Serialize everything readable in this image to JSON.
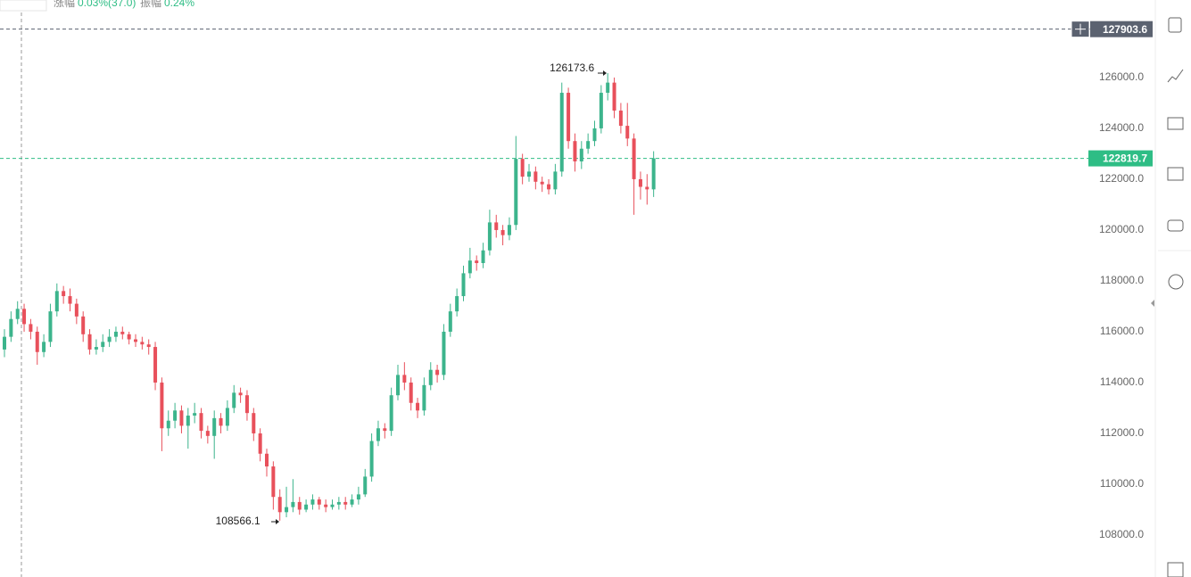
{
  "header": {
    "change_label": "涨幅",
    "change": "0.03%(37.0)",
    "amplitude_label": "振幅",
    "amplitude": "0.24%"
  },
  "chart_data": {
    "type": "candlestick",
    "up_color": "#3cb48c",
    "down_color": "#e8505b",
    "ylim": [
      106350,
      129050
    ],
    "yticks": [
      {
        "value": 108000,
        "label": "108000.0"
      },
      {
        "value": 110000,
        "label": "110000.0"
      },
      {
        "value": 112000,
        "label": "112000.0"
      },
      {
        "value": 114000,
        "label": "114000.0"
      },
      {
        "value": 116000,
        "label": "116000.0"
      },
      {
        "value": 118000,
        "label": "118000.0"
      },
      {
        "value": 120000,
        "label": "120000.0"
      },
      {
        "value": 122000,
        "label": "122000.0"
      },
      {
        "value": 124000,
        "label": "124000.0"
      },
      {
        "value": 126000,
        "label": "126000.0"
      }
    ],
    "price_lines": [
      {
        "value": 127903.6,
        "color": "#5b6270"
      },
      {
        "value": 122819.7,
        "color": "#2ebd85"
      }
    ],
    "open": [
      115300,
      115800,
      116500,
      116900,
      116300,
      116000,
      115200,
      115600,
      116800,
      117600,
      117400,
      117100,
      116600,
      115900,
      115300,
      115400,
      115600,
      115800,
      116000,
      115900,
      115700,
      115600,
      115500,
      115400,
      114000,
      112200,
      112500,
      112900,
      112300,
      112700,
      112800,
      112100,
      111900,
      112600,
      112300,
      113000,
      113600,
      113500,
      112800,
      112000,
      111200,
      110700,
      109500,
      108900,
      109100,
      109300,
      109000,
      109200,
      109400,
      109200,
      109100,
      109200,
      109300,
      109200,
      109400,
      109600,
      110300,
      111700,
      112200,
      112100,
      113500,
      114300,
      114000,
      113200,
      112900,
      113900,
      114500,
      114300,
      116000,
      116800,
      117400,
      118300,
      118800,
      118700,
      119200,
      120300,
      120000,
      119800,
      120200,
      122800,
      122100,
      122300,
      121900,
      121800,
      121600,
      122300,
      125400,
      123500,
      122700,
      123200,
      123500,
      124000,
      125400,
      125800,
      124700,
      124100,
      123600,
      122000,
      121700,
      121600
    ],
    "high": [
      116100,
      116800,
      117200,
      117100,
      116500,
      116200,
      115900,
      117100,
      117900,
      117800,
      117700,
      117300,
      116800,
      116100,
      115700,
      115900,
      116100,
      116200,
      116200,
      116000,
      115900,
      115800,
      115700,
      115600,
      114200,
      112900,
      113200,
      113100,
      113000,
      113200,
      113000,
      112300,
      112900,
      112800,
      113300,
      113900,
      113800,
      113700,
      113000,
      112200,
      111400,
      110900,
      109800,
      109900,
      110200,
      109500,
      109400,
      109600,
      109500,
      109400,
      109400,
      109500,
      109500,
      109600,
      109900,
      110600,
      112000,
      112500,
      112400,
      113800,
      114700,
      114800,
      114200,
      113400,
      114200,
      114800,
      114700,
      116300,
      117100,
      117700,
      118600,
      119300,
      119000,
      119500,
      120800,
      120600,
      120200,
      120500,
      123700,
      123000,
      122600,
      122500,
      122100,
      122000,
      122600,
      125800,
      125600,
      123800,
      123500,
      123800,
      124300,
      125700,
      126173.6,
      126000,
      125000,
      125000,
      123800,
      122300,
      122200,
      123100
    ],
    "low": [
      115000,
      115600,
      116300,
      116000,
      115700,
      114700,
      115000,
      115400,
      116600,
      117100,
      116800,
      116300,
      115600,
      115100,
      115100,
      115200,
      115400,
      115600,
      115700,
      115500,
      115400,
      115300,
      115100,
      113700,
      111300,
      111900,
      112200,
      112000,
      111400,
      112400,
      111800,
      111600,
      111000,
      112000,
      112100,
      112800,
      113200,
      112500,
      111700,
      110900,
      110300,
      109000,
      108566.1,
      108700,
      108900,
      108800,
      108900,
      109000,
      109000,
      108900,
      109000,
      109000,
      109000,
      109100,
      109200,
      109500,
      110100,
      111500,
      111800,
      111900,
      113300,
      113700,
      112900,
      112600,
      112700,
      113700,
      114000,
      114100,
      115800,
      116600,
      117200,
      118100,
      118400,
      118500,
      119000,
      119700,
      119400,
      119600,
      120000,
      121800,
      121900,
      121600,
      121500,
      121400,
      121400,
      122100,
      123200,
      122300,
      122400,
      123000,
      123300,
      123800,
      125100,
      124400,
      123800,
      123300,
      120600,
      121200,
      121000,
      121300
    ],
    "close": [
      115800,
      116500,
      116900,
      116300,
      116000,
      115200,
      115600,
      116800,
      117600,
      117400,
      117100,
      116600,
      115900,
      115300,
      115400,
      115600,
      115800,
      116000,
      115900,
      115700,
      115600,
      115500,
      115400,
      114000,
      112200,
      112500,
      112900,
      112300,
      112700,
      112800,
      112100,
      111900,
      112600,
      112300,
      113000,
      113600,
      113500,
      112800,
      112000,
      111200,
      110700,
      109500,
      108900,
      109100,
      109300,
      109000,
      109200,
      109400,
      109200,
      109100,
      109200,
      109300,
      109200,
      109400,
      109600,
      110300,
      111700,
      112200,
      112100,
      113500,
      114300,
      114000,
      113200,
      112900,
      113900,
      114500,
      114300,
      116000,
      116800,
      117400,
      118300,
      118800,
      118700,
      119200,
      120300,
      120000,
      119800,
      120200,
      122800,
      122100,
      122300,
      121900,
      121800,
      121600,
      122300,
      125400,
      123500,
      122700,
      123200,
      123500,
      124000,
      125400,
      125800,
      124700,
      124100,
      123600,
      122000,
      121700,
      121600,
      122819.7
    ]
  }
}
